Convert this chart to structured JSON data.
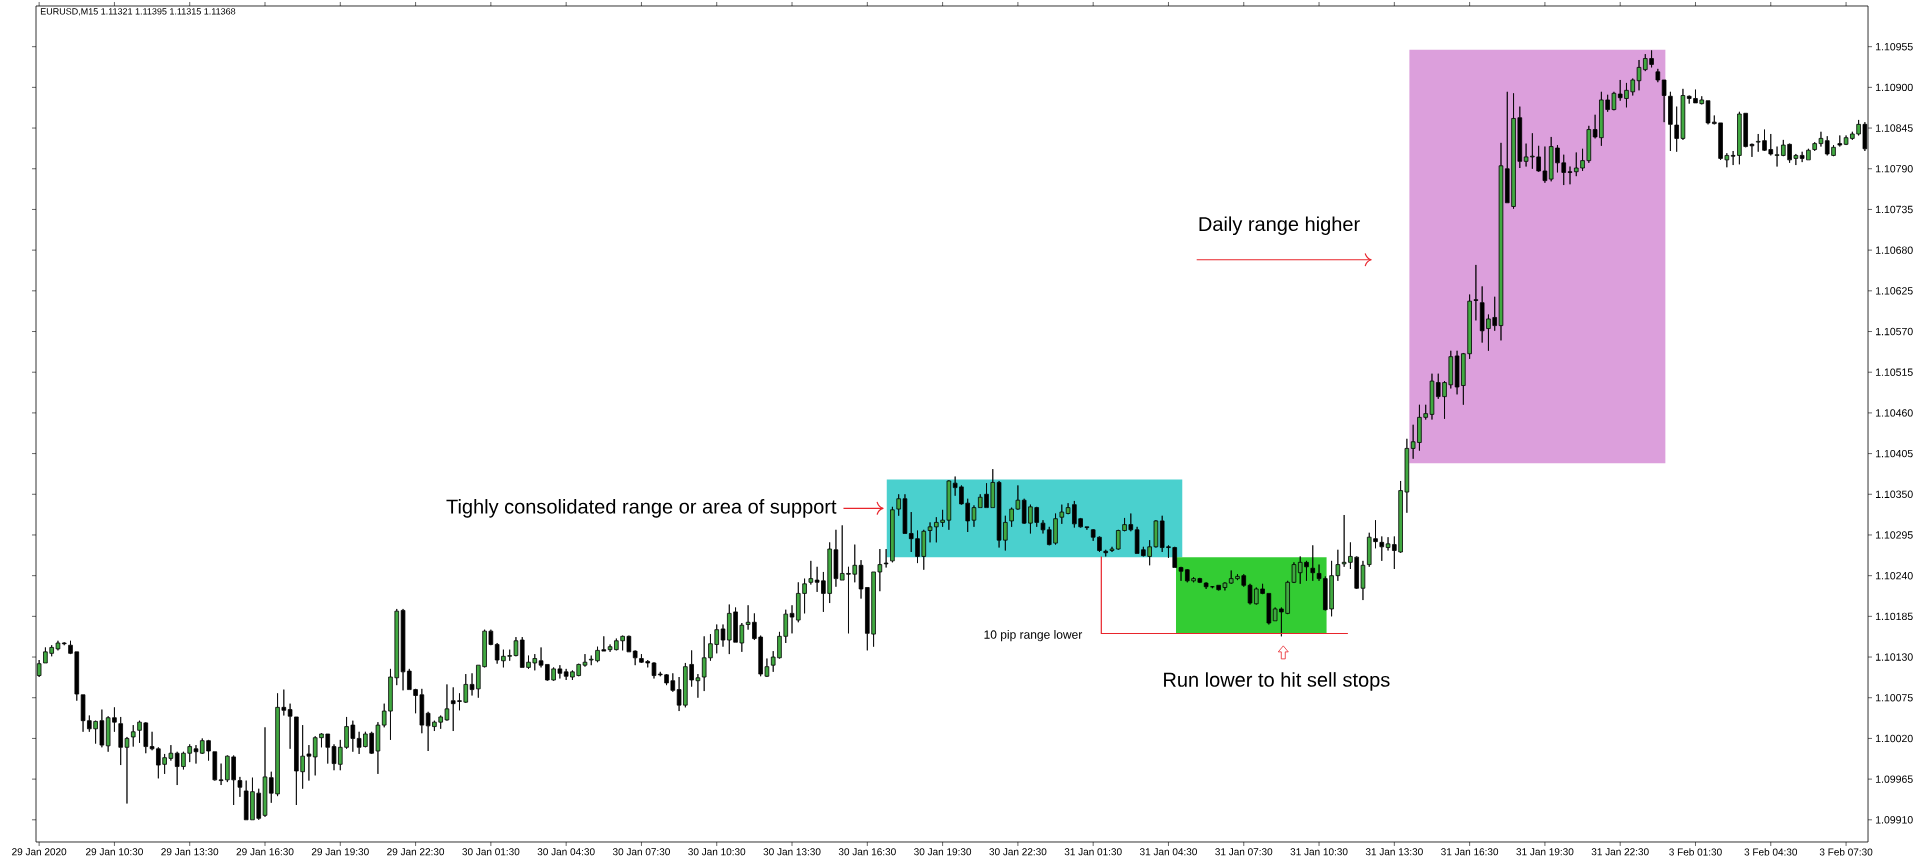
{
  "chart_data": {
    "type": "candlestick",
    "annotations": [
      "EURUSD,M15 1.11321 1.11395 1.11315 1.11368",
      "Tighly consolidated range or area of support",
      "10 pip range lower",
      "Daily range higher",
      "Run lower to hit sell stops"
    ],
    "categories": [
      "29 Jan 2020",
      null,
      null,
      null,
      null,
      null,
      null,
      null,
      null,
      null,
      null,
      null,
      "29 Jan 10:30",
      null,
      null,
      null,
      null,
      null,
      null,
      null,
      null,
      null,
      null,
      null,
      "29 Jan 13:30",
      null,
      null,
      null,
      null,
      null,
      null,
      null,
      null,
      null,
      null,
      null,
      "29 Jan 16:30",
      null,
      null,
      null,
      null,
      null,
      null,
      null,
      null,
      null,
      null,
      null,
      "29 Jan 19:30",
      null,
      null,
      null,
      null,
      null,
      null,
      null,
      null,
      null,
      null,
      null,
      "29 Jan 22:30",
      null,
      null,
      null,
      null,
      null,
      null,
      null,
      null,
      null,
      null,
      null,
      "30 Jan 01:30",
      null,
      null,
      null,
      null,
      null,
      null,
      null,
      null,
      null,
      null,
      null,
      "30 Jan 04:30",
      null,
      null,
      null,
      null,
      null,
      null,
      null,
      null,
      null,
      null,
      null,
      "30 Jan 07:30",
      null,
      null,
      null,
      null,
      null,
      null,
      null,
      null,
      null,
      null,
      null,
      "30 Jan 10:30",
      null,
      null,
      null,
      null,
      null,
      null,
      null,
      null,
      null,
      null,
      null,
      "30 Jan 13:30",
      null,
      null,
      null,
      null,
      null,
      null,
      null,
      null,
      null,
      null,
      null,
      "30 Jan 16:30",
      null,
      null,
      null,
      null,
      null,
      null,
      null,
      null,
      null,
      null,
      null,
      "30 Jan 19:30",
      null,
      null,
      null,
      null,
      null,
      null,
      null,
      null,
      null,
      null,
      null,
      "30 Jan 22:30",
      null,
      null,
      null,
      null,
      null,
      null,
      null,
      null,
      null,
      null,
      null,
      "31 Jan 01:30",
      null,
      null,
      null,
      null,
      null,
      null,
      null,
      null,
      null,
      null,
      null,
      "31 Jan 04:30",
      null,
      null,
      null,
      null,
      null,
      null,
      null,
      null,
      null,
      null,
      null,
      "31 Jan 07:30",
      null,
      null,
      null,
      null,
      null,
      null,
      null,
      null,
      null,
      null,
      null,
      "31 Jan 10:30",
      null,
      null,
      null,
      null,
      null,
      null,
      null,
      null,
      null,
      null,
      null,
      "31 Jan 13:30",
      null,
      null,
      null,
      null,
      null,
      null,
      null,
      null,
      null,
      null,
      null,
      "31 Jan 16:30",
      null,
      null,
      null,
      null,
      null,
      null,
      null,
      null,
      null,
      null,
      null,
      "31 Jan 19:30",
      null,
      null,
      null,
      null,
      null,
      null,
      null,
      null,
      null,
      null,
      null,
      "31 Jan 22:30",
      null,
      null,
      null,
      null,
      null,
      null,
      null,
      null,
      null,
      null,
      null,
      "3 Feb 01:30",
      null,
      null,
      null,
      null,
      null,
      null,
      null,
      null,
      null,
      null,
      null,
      "3 Feb 04:30",
      null,
      null,
      null,
      null,
      null,
      null,
      null,
      null,
      null,
      null,
      null,
      "3 Feb 07:30",
      null,
      null,
      null
    ],
    "ohlc": [
      [
        1.10105,
        1.10126,
        1.10103,
        1.10121
      ],
      [
        1.10122,
        1.10143,
        1.10122,
        1.10137
      ],
      [
        1.10135,
        1.10146,
        1.10131,
        1.10143
      ],
      [
        1.10141,
        1.10152,
        1.10139,
        1.10149
      ],
      [
        1.10149,
        1.1015,
        1.10146,
        1.10148
      ],
      [
        1.10146,
        1.10152,
        1.10134,
        1.10135
      ],
      [
        1.10137,
        1.10137,
        1.10071,
        1.1008
      ],
      [
        1.10079,
        1.10079,
        1.10029,
        1.10044
      ],
      [
        1.10044,
        1.10051,
        1.10029,
        1.10033
      ],
      [
        1.10033,
        1.10044,
        1.10013,
        1.10043
      ],
      [
        1.10044,
        1.10059,
        1.10008,
        1.10011
      ],
      [
        1.1001,
        1.1005,
        1.10002,
        1.10048
      ],
      [
        1.10048,
        1.10062,
        1.10029,
        1.10042
      ],
      [
        1.1004,
        1.10049,
        1.09984,
        1.10008
      ],
      [
        1.10008,
        1.10022,
        1.09932,
        1.1002
      ],
      [
        1.10022,
        1.10038,
        1.10009,
        1.10029
      ],
      [
        1.10031,
        1.10044,
        1.10014,
        1.10042
      ],
      [
        1.10041,
        1.10042,
        1.1,
        1.10009
      ],
      [
        1.10009,
        1.10029,
        1.10004,
        1.10006
      ],
      [
        1.10006,
        1.10008,
        1.09966,
        1.09984
      ],
      [
        1.09985,
        1.09999,
        1.09972,
        1.09994
      ],
      [
        1.09993,
        1.10011,
        1.0999,
        1.1
      ],
      [
        1.1,
        1.10002,
        1.09957,
        1.09982
      ],
      [
        1.09982,
        1.10002,
        1.09978,
        1.1
      ],
      [
        1.1,
        1.10012,
        1.09988,
        1.10009
      ],
      [
        1.10006,
        1.10011,
        1.09986,
        1.10002
      ],
      [
        1.1,
        1.1002,
        1.09999,
        1.10017
      ],
      [
        1.10017,
        1.10018,
        1.0999,
        1.10003
      ],
      [
        1.10002,
        1.10002,
        1.09963,
        1.09964
      ],
      [
        1.09964,
        1.09986,
        1.09957,
        1.09963
      ],
      [
        1.09964,
        1.09997,
        1.09961,
        1.09996
      ],
      [
        1.09995,
        1.09997,
        1.0993,
        1.09964
      ],
      [
        1.09963,
        1.09968,
        1.09941,
        1.09954
      ],
      [
        1.09949,
        1.09963,
        1.0991,
        1.0991
      ],
      [
        1.0991,
        1.09967,
        1.0991,
        1.09948
      ],
      [
        1.09946,
        1.09952,
        1.0991,
        1.09912
      ],
      [
        1.09916,
        1.10035,
        1.09914,
        1.09968
      ],
      [
        1.09967,
        1.09975,
        1.09933,
        1.09946
      ],
      [
        1.09945,
        1.10081,
        1.09942,
        1.10062
      ],
      [
        1.10062,
        1.10086,
        1.10051,
        1.10058
      ],
      [
        1.10059,
        1.10067,
        1.10006,
        1.1005
      ],
      [
        1.10049,
        1.10049,
        1.0993,
        1.09976
      ],
      [
        1.09975,
        1.10038,
        1.09952,
        1.09996
      ],
      [
        1.09999,
        1.10011,
        1.09963,
        1.09996
      ],
      [
        1.09995,
        1.10023,
        1.0997,
        1.10021
      ],
      [
        1.10021,
        1.10027,
        1.10008,
        1.10026
      ],
      [
        1.10026,
        1.10026,
        1.09986,
        1.10008
      ],
      [
        1.10009,
        1.10012,
        1.09977,
        1.09986
      ],
      [
        1.09985,
        1.10018,
        1.09977,
        1.10008
      ],
      [
        1.10008,
        1.10049,
        1.10006,
        1.10036
      ],
      [
        1.10038,
        1.10044,
        1.10002,
        1.1002
      ],
      [
        1.1002,
        1.10029,
        1.09999,
        1.10008
      ],
      [
        1.10009,
        1.10029,
        1.10008,
        1.10026
      ],
      [
        1.10027,
        1.10029,
        1.09999,
        1.1
      ],
      [
        1.10003,
        1.10042,
        1.09972,
        1.10038
      ],
      [
        1.10038,
        1.10067,
        1.10035,
        1.10057
      ],
      [
        1.10057,
        1.10114,
        1.10018,
        1.10103
      ],
      [
        1.10102,
        1.10195,
        1.10092,
        1.10192
      ],
      [
        1.10193,
        1.10195,
        1.10085,
        1.1011
      ],
      [
        1.10111,
        1.10114,
        1.10086,
        1.10086
      ],
      [
        1.10086,
        1.10087,
        1.10054,
        1.10078
      ],
      [
        1.10079,
        1.10087,
        1.10027,
        1.10038
      ],
      [
        1.10054,
        1.10056,
        1.10003,
        1.10037
      ],
      [
        1.10036,
        1.10044,
        1.1003,
        1.10042
      ],
      [
        1.10042,
        1.10051,
        1.10033,
        1.10049
      ],
      [
        1.10045,
        1.10093,
        1.10044,
        1.1006
      ],
      [
        1.10071,
        1.10089,
        1.1003,
        1.10067
      ],
      [
        1.10071,
        1.10081,
        1.10058,
        1.1007
      ],
      [
        1.10069,
        1.10107,
        1.10068,
        1.10093
      ],
      [
        1.10093,
        1.10108,
        1.10078,
        1.10086
      ],
      [
        1.10087,
        1.10119,
        1.10075,
        1.10119
      ],
      [
        1.10117,
        1.10167,
        1.10116,
        1.10165
      ],
      [
        1.10165,
        1.10167,
        1.10146,
        1.10147
      ],
      [
        1.10147,
        1.10149,
        1.10121,
        1.10126
      ],
      [
        1.10125,
        1.1014,
        1.10116,
        1.10131
      ],
      [
        1.10131,
        1.1014,
        1.10125,
        1.10132
      ],
      [
        1.10132,
        1.10157,
        1.10131,
        1.10152
      ],
      [
        1.10153,
        1.10157,
        1.10116,
        1.10116
      ],
      [
        1.10116,
        1.10132,
        1.10114,
        1.10123
      ],
      [
        1.10122,
        1.10134,
        1.10112,
        1.10128
      ],
      [
        1.10125,
        1.10143,
        1.10116,
        1.10119
      ],
      [
        1.1012,
        1.1012,
        1.10098,
        1.10099
      ],
      [
        1.10099,
        1.10116,
        1.10098,
        1.10114
      ],
      [
        1.10114,
        1.10119,
        1.10101,
        1.10108
      ],
      [
        1.1011,
        1.10114,
        1.10099,
        1.10104
      ],
      [
        1.10103,
        1.10112,
        1.10099,
        1.1011
      ],
      [
        1.10105,
        1.10121,
        1.10104,
        1.1012
      ],
      [
        1.10119,
        1.10134,
        1.10117,
        1.10123
      ],
      [
        1.10126,
        1.10132,
        1.10119,
        1.10127
      ],
      [
        1.10125,
        1.10144,
        1.10123,
        1.10139
      ],
      [
        1.1014,
        1.10158,
        1.10138,
        1.10138
      ],
      [
        1.1014,
        1.10147,
        1.10137,
        1.10144
      ],
      [
        1.1014,
        1.10155,
        1.10139,
        1.10152
      ],
      [
        1.10152,
        1.10159,
        1.10139,
        1.10158
      ],
      [
        1.10158,
        1.10159,
        1.10137,
        1.10137
      ],
      [
        1.10138,
        1.10139,
        1.10119,
        1.10129
      ],
      [
        1.10128,
        1.10134,
        1.10122,
        1.10123
      ],
      [
        1.10124,
        1.10126,
        1.10116,
        1.10122
      ],
      [
        1.10122,
        1.10123,
        1.10101,
        1.10105
      ],
      [
        1.10107,
        1.1011,
        1.10104,
        1.10106
      ],
      [
        1.10106,
        1.10107,
        1.10092,
        1.10095
      ],
      [
        1.10098,
        1.10108,
        1.10083,
        1.10085
      ],
      [
        1.10086,
        1.10103,
        1.10057,
        1.10065
      ],
      [
        1.10065,
        1.10122,
        1.10062,
        1.10117
      ],
      [
        1.1012,
        1.10139,
        1.1009,
        1.10099
      ],
      [
        1.10098,
        1.10107,
        1.10075,
        1.10102
      ],
      [
        1.10103,
        1.10158,
        1.10084,
        1.10129
      ],
      [
        1.10129,
        1.10161,
        1.10125,
        1.10148
      ],
      [
        1.10147,
        1.10174,
        1.10135,
        1.10167
      ],
      [
        1.10168,
        1.10174,
        1.10144,
        1.10153
      ],
      [
        1.10153,
        1.10201,
        1.10134,
        1.10189
      ],
      [
        1.10191,
        1.10197,
        1.1015,
        1.1015
      ],
      [
        1.10149,
        1.10176,
        1.10137,
        1.10173
      ],
      [
        1.10174,
        1.102,
        1.10167,
        1.10177
      ],
      [
        1.10177,
        1.10189,
        1.10153,
        1.10155
      ],
      [
        1.10157,
        1.10159,
        1.10104,
        1.10107
      ],
      [
        1.10104,
        1.10128,
        1.10103,
        1.10117
      ],
      [
        1.10119,
        1.10138,
        1.1011,
        1.1013
      ],
      [
        1.10129,
        1.10164,
        1.10128,
        1.10158
      ],
      [
        1.10158,
        1.10194,
        1.10149,
        1.10188
      ],
      [
        1.10189,
        1.102,
        1.10162,
        1.10184
      ],
      [
        1.1018,
        1.10231,
        1.10177,
        1.10216
      ],
      [
        1.10216,
        1.10236,
        1.10189,
        1.10229
      ],
      [
        1.10231,
        1.1026,
        1.10228,
        1.10236
      ],
      [
        1.10234,
        1.10252,
        1.10218,
        1.10231
      ],
      [
        1.10233,
        1.10245,
        1.10191,
        1.10216
      ],
      [
        1.10216,
        1.10285,
        1.10203,
        1.10276
      ],
      [
        1.10275,
        1.10302,
        1.10225,
        1.10236
      ],
      [
        1.10234,
        1.10308,
        1.10234,
        1.10243
      ],
      [
        1.10243,
        1.10252,
        1.10162,
        1.10242
      ],
      [
        1.10242,
        1.10282,
        1.10231,
        1.10254
      ],
      [
        1.10254,
        1.10261,
        1.10209,
        1.10222
      ],
      [
        1.10224,
        1.10224,
        1.10139,
        1.10162
      ],
      [
        1.10161,
        1.10245,
        1.10144,
        1.10245
      ],
      [
        1.10245,
        1.10276,
        1.10219,
        1.10255
      ],
      [
        1.10257,
        1.10276,
        1.10251,
        1.10256
      ],
      [
        1.1026,
        1.10333,
        1.10258,
        1.10329
      ],
      [
        1.1033,
        1.1035,
        1.10321,
        1.10344
      ],
      [
        1.10344,
        1.1035,
        1.10297,
        1.10297
      ],
      [
        1.10297,
        1.10326,
        1.10272,
        1.1029
      ],
      [
        1.1029,
        1.10301,
        1.10257,
        1.10266
      ],
      [
        1.10266,
        1.10302,
        1.10248,
        1.103
      ],
      [
        1.10301,
        1.10312,
        1.10285,
        1.10306
      ],
      [
        1.10306,
        1.10319,
        1.10285,
        1.10312
      ],
      [
        1.10312,
        1.10329,
        1.10306,
        1.10315
      ],
      [
        1.10315,
        1.10369,
        1.10302,
        1.10368
      ],
      [
        1.10365,
        1.10374,
        1.10348,
        1.10359
      ],
      [
        1.1036,
        1.10362,
        1.10336,
        1.10337
      ],
      [
        1.10338,
        1.10344,
        1.10299,
        1.10314
      ],
      [
        1.10315,
        1.10335,
        1.10306,
        1.10332
      ],
      [
        1.10332,
        1.1035,
        1.10332,
        1.10346
      ],
      [
        1.1035,
        1.10365,
        1.10332,
        1.10332
      ],
      [
        1.10332,
        1.10384,
        1.10332,
        1.10366
      ],
      [
        1.10366,
        1.10368,
        1.10278,
        1.10288
      ],
      [
        1.10288,
        1.10321,
        1.10274,
        1.10312
      ],
      [
        1.10314,
        1.10332,
        1.10306,
        1.1033
      ],
      [
        1.1033,
        1.10362,
        1.10329,
        1.10342
      ],
      [
        1.10342,
        1.10344,
        1.1031,
        1.10311
      ],
      [
        1.10311,
        1.10336,
        1.10297,
        1.10333
      ],
      [
        1.10332,
        1.10333,
        1.10306,
        1.10312
      ],
      [
        1.10311,
        1.10315,
        1.10297,
        1.10302
      ],
      [
        1.10302,
        1.10306,
        1.10281,
        1.10282
      ],
      [
        1.10284,
        1.10324,
        1.10282,
        1.10317
      ],
      [
        1.10319,
        1.10336,
        1.1031,
        1.10326
      ],
      [
        1.10324,
        1.10338,
        1.10323,
        1.10332
      ],
      [
        1.10336,
        1.10341,
        1.10305,
        1.1031
      ],
      [
        1.10317,
        1.10318,
        1.10305,
        1.10306
      ],
      [
        1.10306,
        1.10306,
        1.10302,
        1.10305
      ],
      [
        1.10302,
        1.10303,
        1.10287,
        1.10292
      ],
      [
        1.10292,
        1.10293,
        1.10272,
        1.10274
      ],
      [
        1.10273,
        1.10275,
        1.10266,
        1.10271
      ],
      [
        1.10274,
        1.10279,
        1.10272,
        1.10276
      ],
      [
        1.10276,
        1.10302,
        1.10275,
        1.10301
      ],
      [
        1.10301,
        1.10318,
        1.103,
        1.10309
      ],
      [
        1.10309,
        1.10324,
        1.103,
        1.10302
      ],
      [
        1.10302,
        1.10306,
        1.1027,
        1.1027
      ],
      [
        1.10275,
        1.10279,
        1.10266,
        1.10267
      ],
      [
        1.10266,
        1.10288,
        1.10254,
        1.10279
      ],
      [
        1.10279,
        1.10315,
        1.10278,
        1.10314
      ],
      [
        1.10314,
        1.10321,
        1.10272,
        1.10278
      ],
      [
        1.10279,
        1.10281,
        1.10264,
        1.10278
      ],
      [
        1.10278,
        1.10279,
        1.10251,
        1.10251
      ],
      [
        1.10251,
        1.10252,
        1.10233,
        1.10246
      ],
      [
        1.10248,
        1.10249,
        1.10231,
        1.10233
      ],
      [
        1.10233,
        1.10238,
        1.10231,
        1.10236
      ],
      [
        1.10236,
        1.10237,
        1.1023,
        1.10231
      ],
      [
        1.1023,
        1.10231,
        1.10222,
        1.10225
      ],
      [
        1.10225,
        1.10226,
        1.10223,
        1.10225
      ],
      [
        1.10227,
        1.10227,
        1.1022,
        1.10221
      ],
      [
        1.10224,
        1.10231,
        1.1022,
        1.1023
      ],
      [
        1.1023,
        1.10247,
        1.10229,
        1.10236
      ],
      [
        1.10236,
        1.10242,
        1.10234,
        1.10239
      ],
      [
        1.1024,
        1.10242,
        1.10225,
        1.10227
      ],
      [
        1.10227,
        1.10229,
        1.10201,
        1.10203
      ],
      [
        1.10202,
        1.10224,
        1.10201,
        1.10222
      ],
      [
        1.10222,
        1.10229,
        1.10215,
        1.10216
      ],
      [
        1.10216,
        1.10216,
        1.10174,
        1.10176
      ],
      [
        1.10179,
        1.10197,
        1.10179,
        1.10195
      ],
      [
        1.10195,
        1.10197,
        1.10158,
        1.10191
      ],
      [
        1.10189,
        1.10233,
        1.10188,
        1.10231
      ],
      [
        1.10231,
        1.10258,
        1.1023,
        1.10255
      ],
      [
        1.10244,
        1.10266,
        1.10229,
        1.10258
      ],
      [
        1.10258,
        1.1026,
        1.10233,
        1.10252
      ],
      [
        1.1025,
        1.10281,
        1.10233,
        1.10244
      ],
      [
        1.10243,
        1.10255,
        1.10233,
        1.10236
      ],
      [
        1.10236,
        1.10239,
        1.10193,
        1.10194
      ],
      [
        1.10195,
        1.1026,
        1.10185,
        1.1024
      ],
      [
        1.1024,
        1.10275,
        1.10233,
        1.10255
      ],
      [
        1.10256,
        1.10322,
        1.10252,
        1.10258
      ],
      [
        1.10258,
        1.10285,
        1.10249,
        1.10266
      ],
      [
        1.10265,
        1.10266,
        1.10222,
        1.10223
      ],
      [
        1.10223,
        1.1026,
        1.10207,
        1.10254
      ],
      [
        1.10255,
        1.10298,
        1.10252,
        1.10292
      ],
      [
        1.1029,
        1.10315,
        1.10277,
        1.10286
      ],
      [
        1.10285,
        1.10293,
        1.1026,
        1.10279
      ],
      [
        1.10278,
        1.10292,
        1.10274,
        1.10283
      ],
      [
        1.10282,
        1.10293,
        1.10249,
        1.10274
      ],
      [
        1.10272,
        1.10368,
        1.10271,
        1.10355
      ],
      [
        1.10353,
        1.10425,
        1.10325,
        1.10412
      ],
      [
        1.10412,
        1.10444,
        1.10398,
        1.10421
      ],
      [
        1.1042,
        1.10471,
        1.10409,
        1.10454
      ],
      [
        1.10454,
        1.10471,
        1.10451,
        1.10459
      ],
      [
        1.10458,
        1.10513,
        1.10451,
        1.10503
      ],
      [
        1.10501,
        1.10513,
        1.10479,
        1.10482
      ],
      [
        1.10482,
        1.10503,
        1.10452,
        1.10501
      ],
      [
        1.10498,
        1.10544,
        1.10493,
        1.10536
      ],
      [
        1.10537,
        1.10544,
        1.10485,
        1.10495
      ],
      [
        1.10497,
        1.10541,
        1.10471,
        1.1054
      ],
      [
        1.1054,
        1.1062,
        1.10533,
        1.10611
      ],
      [
        1.10613,
        1.1066,
        1.10585,
        1.10612
      ],
      [
        1.10609,
        1.10631,
        1.10555,
        1.10571
      ],
      [
        1.10574,
        1.10593,
        1.10544,
        1.10587
      ],
      [
        1.10589,
        1.10617,
        1.10571,
        1.10578
      ],
      [
        1.10578,
        1.10825,
        1.10558,
        1.10794
      ],
      [
        1.1079,
        1.10894,
        1.10744,
        1.10744
      ],
      [
        1.10739,
        1.10892,
        1.10736,
        1.10858
      ],
      [
        1.10859,
        1.10874,
        1.10791,
        1.108
      ],
      [
        1.108,
        1.10824,
        1.10793,
        1.10806
      ],
      [
        1.10806,
        1.10838,
        1.1079,
        1.10807
      ],
      [
        1.10806,
        1.10821,
        1.10786,
        1.10787
      ],
      [
        1.10787,
        1.1082,
        1.10771,
        1.10774
      ],
      [
        1.10776,
        1.10833,
        1.10773,
        1.1082
      ],
      [
        1.10818,
        1.10822,
        1.10785,
        1.10798
      ],
      [
        1.10798,
        1.10809,
        1.10768,
        1.10785
      ],
      [
        1.10786,
        1.10793,
        1.10769,
        1.10785
      ],
      [
        1.10786,
        1.10812,
        1.1078,
        1.10791
      ],
      [
        1.10791,
        1.10817,
        1.10787,
        1.10801
      ],
      [
        1.10801,
        1.10848,
        1.10798,
        1.10843
      ],
      [
        1.10843,
        1.10863,
        1.10831,
        1.10833
      ],
      [
        1.10832,
        1.10894,
        1.10821,
        1.10883
      ],
      [
        1.10883,
        1.1089,
        1.10867,
        1.1087
      ],
      [
        1.1087,
        1.10894,
        1.10869,
        1.10892
      ],
      [
        1.10891,
        1.1091,
        1.10882,
        1.10886
      ],
      [
        1.10885,
        1.10906,
        1.10873,
        1.10896
      ],
      [
        1.10894,
        1.10912,
        1.10889,
        1.1091
      ],
      [
        1.10909,
        1.10937,
        1.10896,
        1.10927
      ],
      [
        1.10924,
        1.10945,
        1.10922,
        1.10939
      ],
      [
        1.10939,
        1.1095,
        1.10927,
        1.10931
      ],
      [
        1.10921,
        1.10925,
        1.10907,
        1.1091
      ],
      [
        1.1091,
        1.1091,
        1.10853,
        1.10889
      ],
      [
        1.10888,
        1.10894,
        1.10814,
        1.1085
      ],
      [
        1.10849,
        1.10874,
        1.10813,
        1.10831
      ],
      [
        1.10831,
        1.10898,
        1.10829,
        1.10889
      ],
      [
        1.10888,
        1.10889,
        1.10878,
        1.10885
      ],
      [
        1.10885,
        1.10897,
        1.10879,
        1.10879
      ],
      [
        1.10878,
        1.10888,
        1.10877,
        1.10883
      ],
      [
        1.10882,
        1.10882,
        1.1085,
        1.10852
      ],
      [
        1.10853,
        1.10862,
        1.1085,
        1.10851
      ],
      [
        1.10852,
        1.10852,
        1.10802,
        1.10804
      ],
      [
        1.10802,
        1.10811,
        1.10792,
        1.10808
      ],
      [
        1.10808,
        1.10814,
        1.10795,
        1.10807
      ],
      [
        1.10808,
        1.10867,
        1.10796,
        1.10864
      ],
      [
        1.10865,
        1.10865,
        1.10819,
        1.1082
      ],
      [
        1.10823,
        1.10824,
        1.10806,
        1.10821
      ],
      [
        1.10826,
        1.10837,
        1.10813,
        1.10827
      ],
      [
        1.10828,
        1.10843,
        1.10814,
        1.10815
      ],
      [
        1.10816,
        1.10837,
        1.10808,
        1.1081
      ],
      [
        1.10808,
        1.1082,
        1.10793,
        1.10809
      ],
      [
        1.10808,
        1.10829,
        1.10807,
        1.10822
      ],
      [
        1.10823,
        1.10824,
        1.10798,
        1.10802
      ],
      [
        1.10804,
        1.1081,
        1.10795,
        1.10808
      ],
      [
        1.10808,
        1.10813,
        1.10799,
        1.10804
      ],
      [
        1.10802,
        1.10817,
        1.10802,
        1.10815
      ],
      [
        1.10816,
        1.10826,
        1.10814,
        1.10824
      ],
      [
        1.10824,
        1.1084,
        1.1082,
        1.10831
      ],
      [
        1.10828,
        1.10834,
        1.10808,
        1.1081
      ],
      [
        1.10808,
        1.10822,
        1.10807,
        1.10819
      ],
      [
        1.10824,
        1.10835,
        1.1082,
        1.10822
      ],
      [
        1.10823,
        1.10835,
        1.10822,
        1.10832
      ],
      [
        1.10831,
        1.1084,
        1.10829,
        1.10837
      ],
      [
        1.10837,
        1.10856,
        1.10835,
        1.1085
      ],
      [
        1.1085,
        1.10853,
        1.10814,
        1.10817
      ]
    ],
    "colors": [
      "#41a941",
      "#41a941",
      "#41a941",
      "#41a941",
      "#000000",
      "#000000",
      "#000000",
      "#000000",
      "#000000",
      "#41a941",
      "#000000",
      "#41a941",
      "#000000",
      "#000000",
      "#41a941",
      "#41a941",
      "#41a941",
      "#000000",
      "#000000",
      "#000000",
      "#41a941",
      "#41a941",
      "#000000",
      "#41a941",
      "#41a941",
      "#000000",
      "#41a941",
      "#000000",
      "#000000",
      "#000000",
      "#41a941",
      "#000000",
      "#000000",
      "#000000",
      "#41a941",
      "#000000",
      "#41a941",
      "#000000",
      "#41a941",
      "#000000",
      "#000000",
      "#000000",
      "#41a941",
      "#000000",
      "#41a941",
      "#41a941",
      "#000000",
      "#000000",
      "#41a941",
      "#41a941",
      "#000000",
      "#000000",
      "#41a941",
      "#000000",
      "#41a941",
      "#41a941",
      "#41a941",
      "#41a941",
      "#000000",
      "#000000",
      "#000000",
      "#000000",
      "#000000",
      "#41a941",
      "#41a941",
      "#41a941",
      "#000000",
      "#000000",
      "#41a941",
      "#000000",
      "#41a941",
      "#41a941",
      "#000000",
      "#000000",
      "#41a941",
      "#41a941",
      "#41a941",
      "#000000",
      "#41a941",
      "#41a941",
      "#000000",
      "#000000",
      "#41a941",
      "#000000",
      "#000000",
      "#41a941",
      "#41a941",
      "#41a941",
      "#41a941",
      "#41a941",
      "#000000",
      "#41a941",
      "#41a941",
      "#41a941",
      "#000000",
      "#000000",
      "#000000",
      "#000000",
      "#000000",
      "#000000",
      "#000000",
      "#000000",
      "#000000",
      "#41a941",
      "#000000",
      "#41a941",
      "#41a941",
      "#41a941",
      "#41a941",
      "#000000",
      "#41a941",
      "#000000",
      "#41a941",
      "#41a941",
      "#000000",
      "#000000",
      "#41a941",
      "#41a941",
      "#41a941",
      "#41a941",
      "#000000",
      "#41a941",
      "#41a941",
      "#41a941",
      "#000000",
      "#000000",
      "#41a941",
      "#000000",
      "#41a941",
      "#000000",
      "#41a941",
      "#000000",
      "#000000",
      "#41a941",
      "#41a941",
      "#000000",
      "#41a941",
      "#41a941",
      "#000000",
      "#000000",
      "#000000",
      "#41a941",
      "#41a941",
      "#41a941",
      "#41a941",
      "#41a941",
      "#000000",
      "#000000",
      "#000000",
      "#41a941",
      "#41a941",
      "#000000",
      "#41a941",
      "#000000",
      "#41a941",
      "#41a941",
      "#41a941",
      "#000000",
      "#41a941",
      "#000000",
      "#000000",
      "#000000",
      "#41a941",
      "#41a941",
      "#41a941",
      "#000000",
      "#000000",
      "#000000",
      "#000000",
      "#000000",
      "#000000",
      "#41a941",
      "#41a941",
      "#41a941",
      "#000000",
      "#000000",
      "#000000",
      "#41a941",
      "#41a941",
      "#000000",
      "#000000",
      "#000000",
      "#000000",
      "#000000",
      "#41a941",
      "#000000",
      "#000000",
      "#000000",
      "#000000",
      "#41a941",
      "#41a941",
      "#41a941",
      "#000000",
      "#000000",
      "#41a941",
      "#000000",
      "#000000",
      "#41a941",
      "#000000",
      "#41a941",
      "#41a941",
      "#41a941",
      "#000000",
      "#000000",
      "#000000",
      "#000000",
      "#41a941",
      "#41a941",
      "#41a941",
      "#41a941",
      "#000000",
      "#41a941",
      "#41a941",
      "#000000",
      "#000000",
      "#41a941",
      "#000000",
      "#41a941",
      "#41a941",
      "#41a941",
      "#41a941",
      "#41a941",
      "#41a941",
      "#000000",
      "#41a941",
      "#41a941",
      "#000000",
      "#41a941",
      "#41a941",
      "#000000",
      "#000000",
      "#41a941",
      "#000000",
      "#41a941",
      "#000000",
      "#41a941",
      "#000000",
      "#41a941",
      "#41a941",
      "#000000",
      "#000000",
      "#41a941",
      "#000000",
      "#000000",
      "#000000",
      "#41a941",
      "#41a941",
      "#41a941",
      "#000000",
      "#41a941",
      "#000000",
      "#41a941",
      "#000000",
      "#41a941",
      "#41a941",
      "#41a941",
      "#41a941",
      "#000000",
      "#000000",
      "#000000",
      "#000000",
      "#000000",
      "#41a941",
      "#000000",
      "#000000",
      "#41a941",
      "#000000",
      "#000000",
      "#000000",
      "#41a941",
      "#000000",
      "#41a941",
      "#000000",
      "#000000",
      "#41a941",
      "#000000",
      "#000000",
      "#41a941",
      "#41a941",
      "#000000",
      "#41a941",
      "#000000",
      "#41a941",
      "#41a941",
      "#41a941",
      "#000000",
      "#41a941",
      "#000000",
      "#41a941",
      "#41a941",
      "#41a941",
      "#000000"
    ],
    "ylim": [
      1.0988,
      1.1101
    ],
    "yticks": [
      {
        "value": 1.0991,
        "label": "1.09910"
      },
      1.09965,
      {
        "value": 1.1002,
        "label": "1.10020"
      },
      1.10075,
      {
        "value": 1.1013,
        "label": "1.10130"
      },
      1.10185,
      {
        "value": 1.1024,
        "label": "1.10240"
      },
      1.10295,
      {
        "value": 1.1035,
        "label": "1.10350"
      },
      1.10405,
      {
        "value": 1.1046,
        "label": "1.10460"
      },
      1.10515,
      {
        "value": 1.1057,
        "label": "1.10570"
      },
      1.10625,
      {
        "value": 1.1068,
        "label": "1.10680"
      },
      1.10735,
      {
        "value": 1.1079,
        "label": "1.10790"
      },
      1.10845,
      {
        "value": 1.109,
        "label": "1.10900"
      },
      1.10955
    ],
    "bands": [
      {
        "axis": "y",
        "from": 1.10265,
        "to": 1.1037,
        "color": "#4ad0ce"
      },
      {
        "axis": "y",
        "from": 1.10161,
        "to": 1.10265,
        "color": "#33cc33"
      },
      {
        "axis": "y",
        "from": 1.10392,
        "to": 1.10951,
        "color": "#dc9fdc"
      }
    ]
  }
}
